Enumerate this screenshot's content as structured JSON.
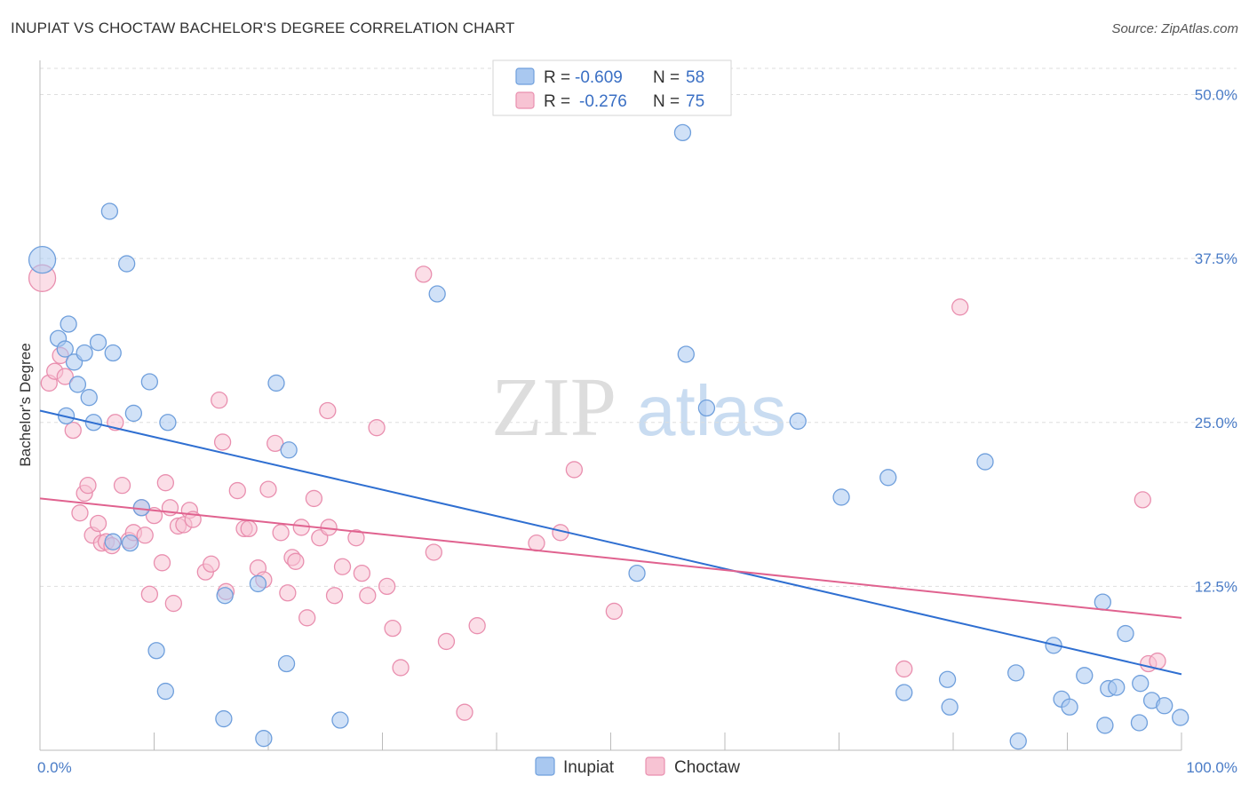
{
  "title": "INUPIAT VS CHOCTAW BACHELOR'S DEGREE CORRELATION CHART",
  "source": "Source: ZipAtlas.com",
  "colors": {
    "inupiat_fill": "#a9c8f0",
    "inupiat_stroke": "#6f9fdc",
    "inupiat_line": "#2f6fd1",
    "choctaw_fill": "#f7c3d3",
    "choctaw_stroke": "#e98faf",
    "choctaw_line": "#e0628f",
    "tick": "#4a7cc7"
  },
  "watermark": {
    "zip": "ZIP",
    "atlas": "atlas"
  },
  "legend": {
    "inupiat": {
      "r_label": "R =",
      "r_value": "-0.609",
      "n_label": "N =",
      "n_value": "58"
    },
    "choctaw": {
      "r_label": "R =",
      "r_value": "-0.276",
      "n_label": "N =",
      "n_value": "75"
    }
  },
  "chart_data": {
    "type": "scatter",
    "title": "INUPIAT VS CHOCTAW BACHELOR'S DEGREE CORRELATION CHART",
    "xlabel": "",
    "ylabel": "Bachelor's Degree",
    "xlim": [
      0,
      100
    ],
    "ylim": [
      0,
      52
    ],
    "x_tick_labels": [
      "0.0%",
      "100.0%"
    ],
    "y_ticks": [
      12.5,
      25.0,
      37.5,
      50.0
    ],
    "y_tick_labels": [
      "12.5%",
      "25.0%",
      "37.5%",
      "50.0%"
    ],
    "grid": true,
    "legend_position": "bottom-center",
    "series": [
      {
        "name": "Inupiat",
        "r": -0.609,
        "n": 58,
        "trend": {
          "x": [
            0,
            100
          ],
          "y": [
            25.9,
            5.8
          ]
        },
        "points": [
          [
            0.2,
            37.4
          ],
          [
            1.6,
            31.4
          ],
          [
            2.2,
            30.6
          ],
          [
            2.3,
            25.5
          ],
          [
            2.5,
            32.5
          ],
          [
            3.0,
            29.6
          ],
          [
            3.3,
            27.9
          ],
          [
            3.9,
            30.3
          ],
          [
            4.3,
            26.9
          ],
          [
            4.7,
            25.0
          ],
          [
            5.1,
            31.1
          ],
          [
            6.1,
            41.1
          ],
          [
            6.4,
            30.3
          ],
          [
            6.4,
            15.9
          ],
          [
            7.6,
            37.1
          ],
          [
            7.9,
            15.8
          ],
          [
            8.2,
            25.7
          ],
          [
            8.9,
            18.5
          ],
          [
            9.6,
            28.1
          ],
          [
            10.2,
            7.6
          ],
          [
            11.0,
            4.5
          ],
          [
            11.2,
            25.0
          ],
          [
            16.1,
            2.4
          ],
          [
            16.2,
            11.8
          ],
          [
            19.1,
            12.7
          ],
          [
            19.6,
            0.9
          ],
          [
            20.7,
            28.0
          ],
          [
            21.6,
            6.6
          ],
          [
            21.8,
            22.9
          ],
          [
            26.3,
            2.3
          ],
          [
            34.8,
            34.8
          ],
          [
            52.3,
            13.5
          ],
          [
            56.3,
            47.1
          ],
          [
            56.6,
            30.2
          ],
          [
            58.4,
            26.1
          ],
          [
            66.4,
            25.1
          ],
          [
            70.2,
            19.3
          ],
          [
            74.3,
            20.8
          ],
          [
            75.7,
            4.4
          ],
          [
            79.5,
            5.4
          ],
          [
            79.7,
            3.3
          ],
          [
            82.8,
            22.0
          ],
          [
            85.5,
            5.9
          ],
          [
            85.7,
            0.7
          ],
          [
            88.8,
            8.0
          ],
          [
            89.5,
            3.9
          ],
          [
            90.2,
            3.3
          ],
          [
            91.5,
            5.7
          ],
          [
            93.1,
            11.3
          ],
          [
            93.3,
            1.9
          ],
          [
            93.6,
            4.7
          ],
          [
            94.3,
            4.8
          ],
          [
            95.1,
            8.9
          ],
          [
            96.3,
            2.1
          ],
          [
            96.4,
            5.1
          ],
          [
            97.4,
            3.8
          ],
          [
            98.5,
            3.4
          ],
          [
            99.9,
            2.5
          ]
        ]
      },
      {
        "name": "Choctaw",
        "r": -0.276,
        "n": 75,
        "trend": {
          "x": [
            0,
            100
          ],
          "y": [
            19.2,
            10.1
          ]
        },
        "points": [
          [
            0.2,
            36.0
          ],
          [
            0.8,
            28.0
          ],
          [
            1.3,
            28.9
          ],
          [
            1.8,
            30.1
          ],
          [
            2.2,
            28.5
          ],
          [
            2.9,
            24.4
          ],
          [
            3.5,
            18.1
          ],
          [
            3.9,
            19.6
          ],
          [
            4.2,
            20.2
          ],
          [
            4.6,
            16.4
          ],
          [
            5.1,
            17.3
          ],
          [
            5.4,
            15.8
          ],
          [
            5.8,
            15.9
          ],
          [
            6.3,
            15.6
          ],
          [
            6.6,
            25.0
          ],
          [
            7.2,
            20.2
          ],
          [
            7.8,
            16.0
          ],
          [
            8.2,
            16.6
          ],
          [
            8.9,
            18.5
          ],
          [
            9.2,
            16.4
          ],
          [
            9.6,
            11.9
          ],
          [
            10.0,
            17.9
          ],
          [
            10.7,
            14.3
          ],
          [
            11.0,
            20.4
          ],
          [
            11.4,
            18.5
          ],
          [
            11.7,
            11.2
          ],
          [
            12.1,
            17.1
          ],
          [
            12.6,
            17.2
          ],
          [
            13.1,
            18.3
          ],
          [
            13.4,
            17.6
          ],
          [
            14.5,
            13.6
          ],
          [
            15.0,
            14.2
          ],
          [
            15.7,
            26.7
          ],
          [
            16.0,
            23.5
          ],
          [
            16.3,
            12.1
          ],
          [
            17.3,
            19.8
          ],
          [
            17.9,
            16.9
          ],
          [
            18.3,
            16.9
          ],
          [
            19.1,
            13.9
          ],
          [
            19.6,
            13.0
          ],
          [
            20.0,
            19.9
          ],
          [
            20.6,
            23.4
          ],
          [
            21.1,
            16.6
          ],
          [
            21.7,
            12.0
          ],
          [
            22.1,
            14.7
          ],
          [
            22.4,
            14.4
          ],
          [
            22.9,
            17.0
          ],
          [
            23.4,
            10.1
          ],
          [
            24.0,
            19.2
          ],
          [
            24.5,
            16.2
          ],
          [
            25.2,
            25.9
          ],
          [
            25.3,
            17.0
          ],
          [
            25.8,
            11.8
          ],
          [
            26.5,
            14.0
          ],
          [
            27.7,
            16.2
          ],
          [
            28.2,
            13.5
          ],
          [
            28.7,
            11.8
          ],
          [
            29.5,
            24.6
          ],
          [
            30.4,
            12.5
          ],
          [
            30.9,
            9.3
          ],
          [
            31.6,
            6.3
          ],
          [
            33.6,
            36.3
          ],
          [
            34.5,
            15.1
          ],
          [
            35.6,
            8.3
          ],
          [
            37.2,
            2.9
          ],
          [
            38.3,
            9.5
          ],
          [
            43.5,
            15.8
          ],
          [
            45.6,
            16.6
          ],
          [
            46.8,
            21.4
          ],
          [
            50.3,
            10.6
          ],
          [
            75.7,
            6.2
          ],
          [
            80.6,
            33.8
          ],
          [
            96.6,
            19.1
          ],
          [
            97.1,
            6.6
          ],
          [
            97.9,
            6.8
          ]
        ]
      }
    ]
  },
  "bottom_legend": {
    "inupiat": "Inupiat",
    "choctaw": "Choctaw"
  }
}
